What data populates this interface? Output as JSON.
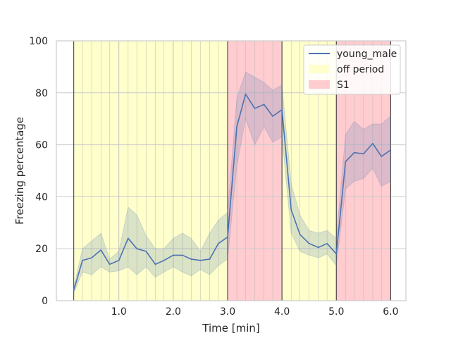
{
  "chart_data": {
    "type": "line",
    "xlabel": "Time [min]",
    "ylabel": "Freezing percentage",
    "xlim": [
      -0.15,
      6.28
    ],
    "ylim": [
      0,
      100
    ],
    "x_ticks": [
      1.0,
      2.0,
      3.0,
      4.0,
      5.0,
      6.0
    ],
    "x_tick_labels": [
      "1.0",
      "2.0",
      "3.0",
      "4.0",
      "5.0",
      "6.0"
    ],
    "y_ticks": [
      0,
      20,
      40,
      60,
      80,
      100
    ],
    "y_tick_labels": [
      "0",
      "20",
      "40",
      "60",
      "80",
      "100"
    ],
    "grid": true,
    "legend_position": "top-right",
    "series": [
      {
        "name": "young_male",
        "color": "#4c72b0",
        "x": [
          0.17,
          0.33,
          0.5,
          0.67,
          0.83,
          1.0,
          1.17,
          1.33,
          1.5,
          1.67,
          1.83,
          2.0,
          2.17,
          2.33,
          2.5,
          2.67,
          2.83,
          3.0,
          3.17,
          3.33,
          3.5,
          3.67,
          3.83,
          4.0,
          4.17,
          4.33,
          4.5,
          4.67,
          4.83,
          5.0,
          5.17,
          5.33,
          5.5,
          5.67,
          5.83,
          6.0
        ],
        "y": [
          4,
          15.5,
          16.5,
          19.5,
          14,
          15.5,
          24,
          20,
          19,
          14,
          15.5,
          17.5,
          17.5,
          16,
          15.5,
          16,
          22,
          24.5,
          67,
          79.5,
          74,
          75.5,
          71,
          73.5,
          35,
          25.5,
          22,
          20.5,
          22,
          18,
          53.5,
          57,
          56.5,
          60.5,
          55.5,
          58
        ],
        "lower": [
          3,
          11,
          10,
          13,
          11,
          11.5,
          13,
          10,
          13,
          9,
          11,
          13,
          11,
          9.5,
          12,
          10,
          13.5,
          16,
          52,
          70,
          60,
          67,
          61,
          63,
          26,
          19,
          17.5,
          16.5,
          18,
          13.5,
          43,
          46,
          47,
          51,
          44,
          46
        ],
        "upper": [
          5,
          20,
          23,
          26,
          16,
          19,
          36,
          33,
          25,
          20,
          20,
          24,
          26,
          24,
          19,
          26,
          31,
          34,
          78,
          88,
          86,
          84,
          81,
          83,
          45,
          33,
          27,
          26,
          27,
          24,
          64,
          69,
          66,
          68,
          68,
          71
        ]
      }
    ],
    "periods": [
      {
        "name": "off period",
        "start": 0.17,
        "end": 3.0,
        "color": "#ffffcc"
      },
      {
        "name": "S1",
        "start": 3.0,
        "end": 4.0,
        "color": "#ffccd0"
      },
      {
        "name": "off period",
        "start": 4.0,
        "end": 5.0,
        "color": "#ffffcc"
      },
      {
        "name": "S1",
        "start": 5.0,
        "end": 6.0,
        "color": "#ffccd0"
      }
    ],
    "period_boundaries": [
      0.17,
      3.0,
      4.0,
      5.0,
      6.0
    ],
    "legend": [
      {
        "label": "young_male",
        "kind": "line",
        "color": "#4c72b0"
      },
      {
        "label": "off period",
        "kind": "patch",
        "color": "#ffffcc"
      },
      {
        "label": "S1",
        "kind": "patch",
        "color": "#ffccd0"
      }
    ]
  }
}
